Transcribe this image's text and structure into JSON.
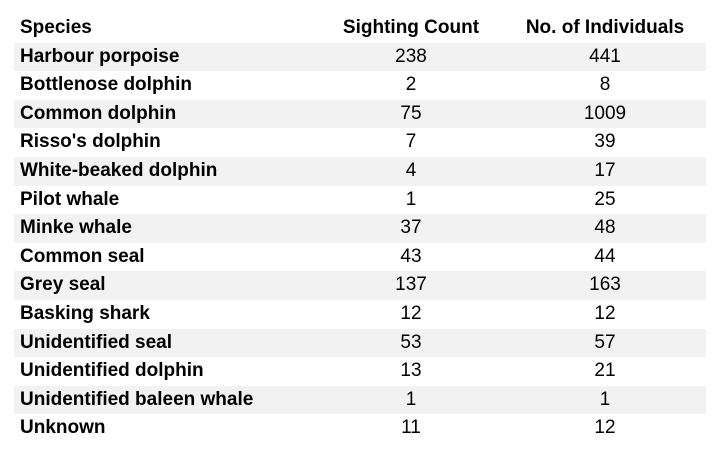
{
  "table": {
    "headers": [
      "Species",
      "Sighting Count",
      "No. of Individuals"
    ],
    "rows": [
      {
        "species": "Harbour porpoise",
        "sightings": "238",
        "individuals": "441"
      },
      {
        "species": "Bottlenose dolphin",
        "sightings": "2",
        "individuals": "8"
      },
      {
        "species": "Common dolphin",
        "sightings": "75",
        "individuals": "1009"
      },
      {
        "species": "Risso's dolphin",
        "sightings": "7",
        "individuals": "39"
      },
      {
        "species": "White-beaked dolphin",
        "sightings": "4",
        "individuals": "17"
      },
      {
        "species": "Pilot whale",
        "sightings": "1",
        "individuals": "25"
      },
      {
        "species": "Minke whale",
        "sightings": "37",
        "individuals": "48"
      },
      {
        "species": "Common seal",
        "sightings": "43",
        "individuals": "44"
      },
      {
        "species": "Grey seal",
        "sightings": "137",
        "individuals": "163"
      },
      {
        "species": "Basking shark",
        "sightings": "12",
        "individuals": "12"
      },
      {
        "species": "Unidentified seal",
        "sightings": "53",
        "individuals": "57"
      },
      {
        "species": "Unidentified dolphin",
        "sightings": "13",
        "individuals": "21"
      },
      {
        "species": "Unidentified baleen whale",
        "sightings": "1",
        "individuals": "1"
      },
      {
        "species": "Unknown",
        "sightings": "11",
        "individuals": "12"
      }
    ]
  },
  "colors": {
    "stripe": "#f2f2f2",
    "background": "#ffffff",
    "text": "#000000"
  }
}
